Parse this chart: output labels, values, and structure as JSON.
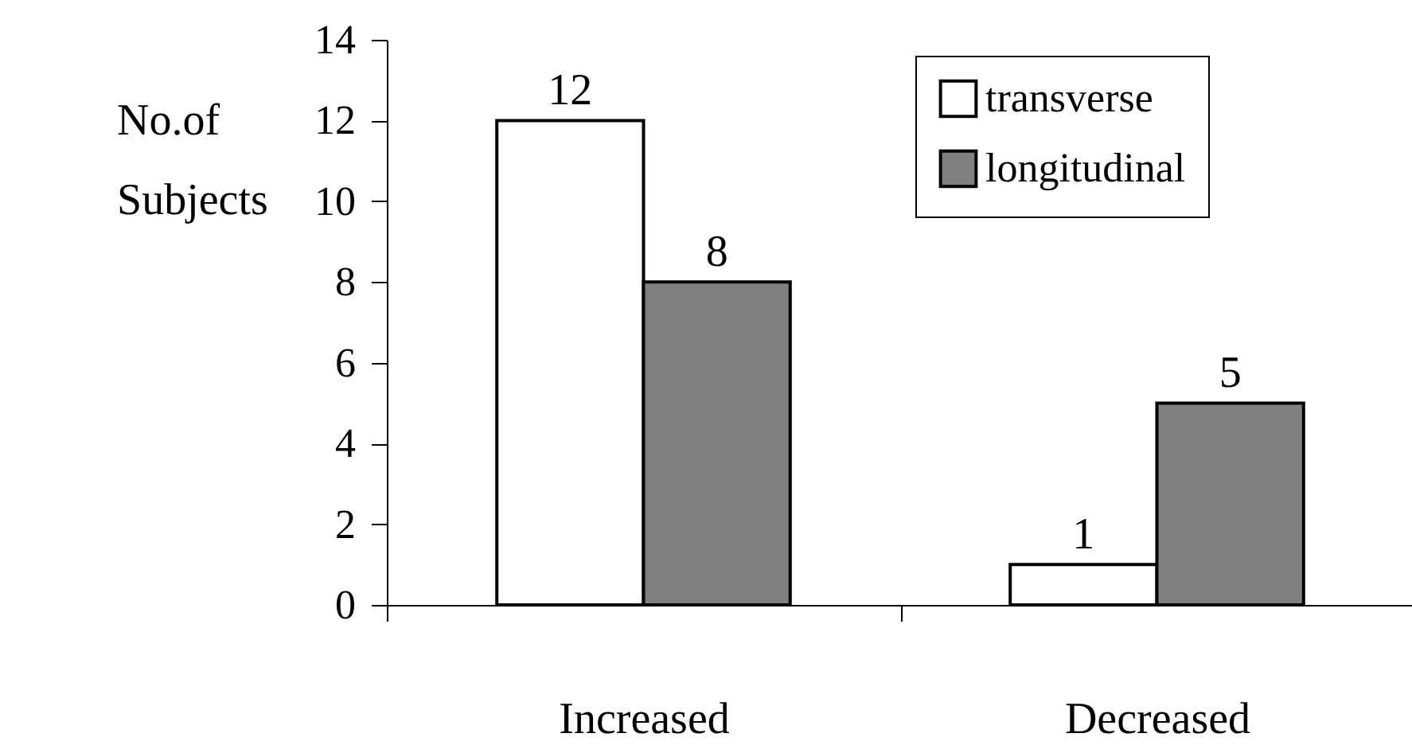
{
  "chart_data": {
    "type": "bar",
    "ylabel": "No.of Subjects",
    "categories": [
      "Increased",
      "Decreased"
    ],
    "series": [
      {
        "name": "transverse",
        "color": "#ffffff",
        "values": [
          12,
          1
        ]
      },
      {
        "name": "longitudinal",
        "color": "#808080",
        "values": [
          8,
          5
        ]
      }
    ],
    "ylim": [
      0,
      14
    ],
    "yticks": [
      0,
      2,
      4,
      6,
      8,
      10,
      12,
      14
    ],
    "grid": false,
    "legend": "top right",
    "data_labels": true
  }
}
